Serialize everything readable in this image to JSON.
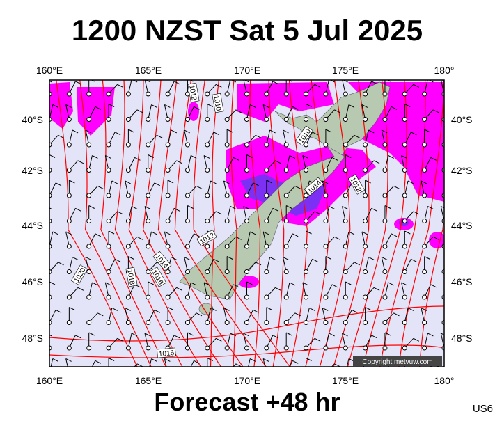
{
  "title": "1200 NZST Sat 5 Jul 2025",
  "map": {
    "longitude_labels_top": [
      "160°E",
      "165°E",
      "170°E",
      "175°E",
      "180°"
    ],
    "longitude_labels_bottom": [
      "160°E",
      "165°E",
      "170°E",
      "175°E",
      "180°"
    ],
    "latitude_labels_left": [
      "40°S",
      "42°S",
      "44°S",
      "46°S",
      "48°S"
    ],
    "latitude_labels_right": [
      "40°S",
      "42°S",
      "44°S",
      "46°S",
      "48°S"
    ],
    "isobar_labels": [
      "1012",
      "1010",
      "1010",
      "1014",
      "1012",
      "1012",
      "1014",
      "1016",
      "1018",
      "1020",
      "1016"
    ],
    "copyright": "Copyright metvuw.com"
  },
  "footer": {
    "caption": "Forecast +48 hr",
    "code": "US6"
  }
}
